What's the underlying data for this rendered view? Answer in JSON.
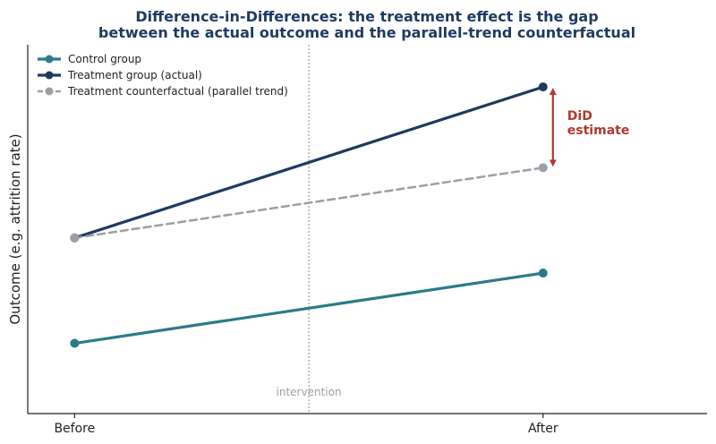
{
  "chart_data": {
    "type": "line",
    "title_lines": [
      "Difference-in-Differences: the treatment effect is the gap",
      "between the actual outcome and the parallel-trend counterfactual"
    ],
    "ylabel": "Outcome (e.g. attrition rate)",
    "xlabel": "",
    "categories": [
      "Before",
      "After"
    ],
    "x": [
      0,
      1
    ],
    "xlim": [
      -0.1,
      1.35
    ],
    "ylim": [
      0.5,
      11.0
    ],
    "yticks_visible": false,
    "grid": false,
    "legend_placement": "top-left",
    "series": [
      {
        "name": "Control group",
        "values": [
          2.5,
          4.5
        ],
        "color": "#2a7b8a",
        "style": "solid",
        "marker": "circle"
      },
      {
        "name": "Treatment group (actual)",
        "values": [
          5.5,
          9.8
        ],
        "color": "#1f3a5f",
        "style": "solid",
        "marker": "circle"
      },
      {
        "name": "Treatment counterfactual (parallel trend)",
        "values": [
          5.5,
          7.5
        ],
        "color": "#9aa0a6",
        "style": "dashed",
        "marker": "circle"
      }
    ],
    "vline": {
      "x": 0.5,
      "label": "intervention",
      "color": "#9aa0a6"
    },
    "annotation": {
      "lines": [
        "DiD",
        "estimate"
      ],
      "x": 1,
      "y_from": 7.5,
      "y_to": 9.8,
      "color": "#b03a2e"
    }
  }
}
